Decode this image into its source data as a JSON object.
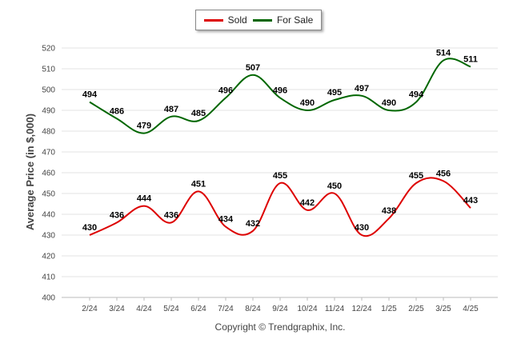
{
  "chart_data": {
    "type": "line",
    "categories": [
      "2/24",
      "3/24",
      "4/24",
      "5/24",
      "6/24",
      "7/24",
      "8/24",
      "9/24",
      "10/24",
      "11/24",
      "12/24",
      "1/25",
      "2/25",
      "3/25",
      "4/25"
    ],
    "series": [
      {
        "name": "Sold",
        "color": "#dd0000",
        "values": [
          430,
          436,
          444,
          436,
          451,
          434,
          432,
          455,
          442,
          450,
          430,
          438,
          455,
          456,
          443
        ]
      },
      {
        "name": "For Sale",
        "color": "#006600",
        "values": [
          494,
          486,
          479,
          487,
          485,
          496,
          507,
          496,
          490,
          495,
          497,
          490,
          494,
          514,
          511
        ]
      }
    ],
    "xlabel": "",
    "ylabel": "Average Price (in $,000)",
    "ylim": [
      400,
      520
    ],
    "yticks": [
      400,
      410,
      420,
      430,
      440,
      450,
      460,
      470,
      480,
      490,
      500,
      510,
      520
    ],
    "grid": true,
    "legend_position": "top-center",
    "footer": "Copyright © Trendgraphix, Inc."
  }
}
